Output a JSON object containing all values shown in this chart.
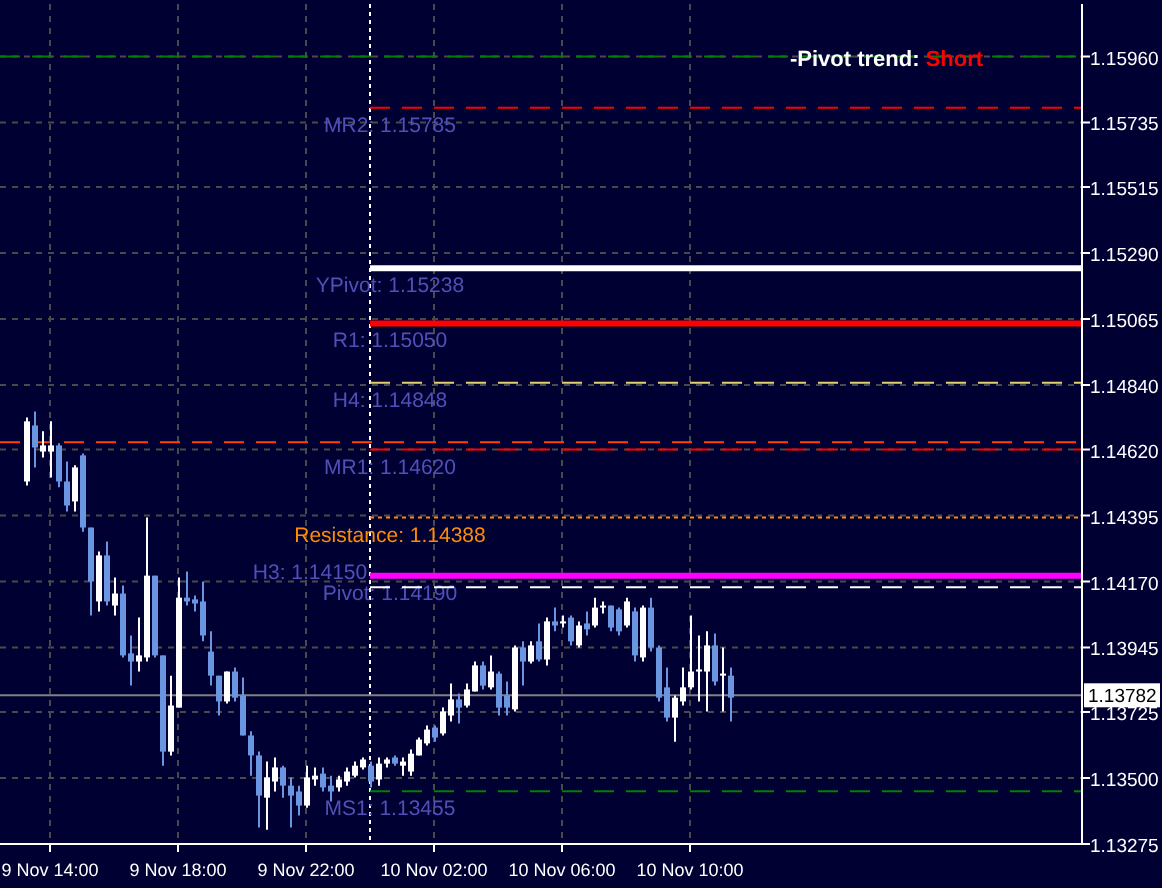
{
  "chart_data": {
    "type": "candlestick",
    "x": [
      "--11-09T13:15",
      "--11-09T13:30",
      "--11-09T13:45",
      "--11-09T14:00",
      "--11-09T14:15",
      "--11-09T14:30",
      "--11-09T14:45",
      "--11-09T15:00",
      "--11-09T15:15",
      "--11-09T15:30",
      "--11-09T15:45",
      "--11-09T16:00",
      "--11-09T16:15",
      "--11-09T16:30",
      "--11-09T16:45",
      "--11-09T17:00",
      "--11-09T17:15",
      "--11-09T17:30",
      "--11-09T17:45",
      "--11-09T18:00",
      "--11-09T18:15",
      "--11-09T18:30",
      "--11-09T18:45",
      "--11-09T19:00",
      "--11-09T19:15",
      "--11-09T19:30",
      "--11-09T19:45",
      "--11-09T20:00",
      "--11-09T20:15",
      "--11-09T20:30",
      "--11-09T20:45",
      "--11-09T21:00",
      "--11-09T21:15",
      "--11-09T21:30",
      "--11-09T21:45",
      "--11-09T22:00",
      "--11-09T22:15",
      "--11-09T22:30",
      "--11-09T22:45",
      "--11-09T23:00",
      "--11-09T23:15",
      "--11-09T23:30",
      "--11-09T23:45",
      "--11-10T00:00",
      "--11-10T00:15",
      "--11-10T00:30",
      "--11-10T00:45",
      "--11-10T01:00",
      "--11-10T01:15",
      "--11-10T01:30",
      "--11-10T01:45",
      "--11-10T02:00",
      "--11-10T02:15",
      "--11-10T02:30",
      "--11-10T02:45",
      "--11-10T03:00",
      "--11-10T03:15",
      "--11-10T03:30",
      "--11-10T03:45",
      "--11-10T04:00",
      "--11-10T04:15",
      "--11-10T04:30",
      "--11-10T04:45",
      "--11-10T05:00",
      "--11-10T05:15",
      "--11-10T05:30",
      "--11-10T05:45",
      "--11-10T06:00",
      "--11-10T06:15",
      "--11-10T06:30",
      "--11-10T06:45",
      "--11-10T07:00",
      "--11-10T07:15",
      "--11-10T07:30",
      "--11-10T07:45",
      "--11-10T08:00",
      "--11-10T08:15",
      "--11-10T08:30",
      "--11-10T08:45",
      "--11-10T09:00",
      "--11-10T09:15",
      "--11-10T09:30",
      "--11-10T09:45",
      "--11-10T10:00",
      "--11-10T10:15",
      "--11-10T10:30",
      "--11-10T10:45",
      "--11-10T11:00",
      "--11-10T11:15"
    ],
    "ohlc": [
      [
        1.14511,
        1.14729,
        1.14497,
        1.14716
      ],
      [
        1.14702,
        1.1475,
        1.14559,
        1.14627
      ],
      [
        1.14613,
        1.14682,
        1.14593,
        1.14634
      ],
      [
        1.14613,
        1.14716,
        1.14525,
        1.14634
      ],
      [
        1.14634,
        1.14641,
        1.14491,
        1.14511
      ],
      [
        1.14511,
        1.14579,
        1.14409,
        1.14429
      ],
      [
        1.14443,
        1.14566,
        1.14409,
        1.14559
      ],
      [
        1.146,
        1.14606,
        1.1434,
        1.14354
      ],
      [
        1.14354,
        1.14354,
        1.14054,
        1.1417
      ],
      [
        1.14102,
        1.14272,
        1.14068,
        1.14259
      ],
      [
        1.14259,
        1.14306,
        1.14088,
        1.14102
      ],
      [
        1.14088,
        1.14184,
        1.14054,
        1.14129
      ],
      [
        1.14129,
        1.14156,
        1.13911,
        1.13918
      ],
      [
        1.13925,
        1.13986,
        1.13815,
        1.13897
      ],
      [
        1.13897,
        1.14047,
        1.13863,
        1.13918
      ],
      [
        1.13911,
        1.14388,
        1.13897,
        1.1419
      ],
      [
        1.1419,
        1.1419,
        1.13911,
        1.13918
      ],
      [
        1.13918,
        1.13918,
        1.13542,
        1.1359
      ],
      [
        1.1359,
        1.13849,
        1.13577,
        1.13747
      ],
      [
        1.1374,
        1.14184,
        1.1374,
        1.14115
      ],
      [
        1.14115,
        1.14204,
        1.14088,
        1.14102
      ],
      [
        1.14109,
        1.14122,
        1.14068,
        1.14095
      ],
      [
        1.14102,
        1.1417,
        1.13966,
        1.13986
      ],
      [
        1.13931,
        1.14,
        1.13815,
        1.13849
      ],
      [
        1.13849,
        1.13849,
        1.13713,
        1.13761
      ],
      [
        1.13761,
        1.13863,
        1.13754,
        1.13863
      ],
      [
        1.13863,
        1.13877,
        1.13761,
        1.13774
      ],
      [
        1.13781,
        1.13843,
        1.13645,
        1.13645
      ],
      [
        1.13645,
        1.13659,
        1.13508,
        1.13577
      ],
      [
        1.13577,
        1.1359,
        1.13331,
        1.1344
      ],
      [
        1.13433,
        1.13556,
        1.13324,
        1.13502
      ],
      [
        1.13488,
        1.1357,
        1.13454,
        1.13536
      ],
      [
        1.13536,
        1.13542,
        1.13433,
        1.13474
      ],
      [
        1.13474,
        1.13502,
        1.13331,
        1.1344
      ],
      [
        1.13454,
        1.13474,
        1.13372,
        1.13406
      ],
      [
        1.13406,
        1.13542,
        1.13399,
        1.13502
      ],
      [
        1.13495,
        1.13536,
        1.13474,
        1.13508
      ],
      [
        1.13515,
        1.13536,
        1.13454,
        1.13468
      ],
      [
        1.13474,
        1.13508,
        1.1342,
        1.13454
      ],
      [
        1.13468,
        1.13508,
        1.13454,
        1.13495
      ],
      [
        1.13488,
        1.13536,
        1.13474,
        1.13522
      ],
      [
        1.13508,
        1.13556,
        1.13502,
        1.13542
      ],
      [
        1.13536,
        1.1357,
        1.13529,
        1.13563
      ],
      [
        1.13542,
        1.13556,
        1.13468,
        1.13488
      ],
      [
        1.13495,
        1.1357,
        1.13474,
        1.13549
      ],
      [
        1.13549,
        1.1357,
        1.13536,
        1.13563
      ],
      [
        1.1357,
        1.13577,
        1.13542,
        1.13549
      ],
      [
        1.13542,
        1.1357,
        1.13508,
        1.13556
      ],
      [
        1.13522,
        1.13597,
        1.13508,
        1.13583
      ],
      [
        1.13577,
        1.13638,
        1.13577,
        1.13631
      ],
      [
        1.13618,
        1.13679,
        1.13611,
        1.13665
      ],
      [
        1.13672,
        1.13679,
        1.13624,
        1.13638
      ],
      [
        1.13652,
        1.1374,
        1.13645,
        1.13727
      ],
      [
        1.13713,
        1.13822,
        1.13693,
        1.13768
      ],
      [
        1.13768,
        1.13788,
        1.13686,
        1.1374
      ],
      [
        1.13747,
        1.13822,
        1.1374,
        1.13802
      ],
      [
        1.13795,
        1.13897,
        1.13795,
        1.13884
      ],
      [
        1.13884,
        1.13897,
        1.13802,
        1.13815
      ],
      [
        1.13809,
        1.13918,
        1.13802,
        1.13863
      ],
      [
        1.13856,
        1.13863,
        1.13713,
        1.1374
      ],
      [
        1.13781,
        1.13829,
        1.13713,
        1.1374
      ],
      [
        1.13734,
        1.13952,
        1.13727,
        1.13945
      ],
      [
        1.13945,
        1.13966,
        1.13815,
        1.13897
      ],
      [
        1.13897,
        1.13966,
        1.1389,
        1.13952
      ],
      [
        1.13966,
        1.14027,
        1.13897,
        1.13904
      ],
      [
        1.13904,
        1.14047,
        1.13884,
        1.14034
      ],
      [
        1.14034,
        1.14081,
        1.14,
        1.1402
      ],
      [
        1.14027,
        1.14054,
        1.14013,
        1.14034
      ],
      [
        1.14047,
        1.14054,
        1.13952,
        1.13966
      ],
      [
        1.13952,
        1.14034,
        1.13945,
        1.1402
      ],
      [
        1.14027,
        1.14068,
        1.13986,
        1.14007
      ],
      [
        1.1402,
        1.14115,
        1.14013,
        1.14081
      ],
      [
        1.14081,
        1.14102,
        1.14061,
        1.14088
      ],
      [
        1.14088,
        1.14088,
        1.14,
        1.14013
      ],
      [
        1.14075,
        1.14081,
        1.13986,
        1.14
      ],
      [
        1.1402,
        1.14115,
        1.14013,
        1.14102
      ],
      [
        1.14068,
        1.14081,
        1.13897,
        1.13918
      ],
      [
        1.13911,
        1.14088,
        1.13897,
        1.14081
      ],
      [
        1.14081,
        1.14115,
        1.13931,
        1.13945
      ],
      [
        1.13945,
        1.13952,
        1.13761,
        1.13774
      ],
      [
        1.13809,
        1.13877,
        1.13693,
        1.13706
      ],
      [
        1.13706,
        1.13781,
        1.13624,
        1.13774
      ],
      [
        1.13761,
        1.13877,
        1.13747,
        1.13809
      ],
      [
        1.13809,
        1.14054,
        1.13802,
        1.13863
      ],
      [
        1.13863,
        1.13986,
        1.13761,
        1.1387
      ],
      [
        1.13863,
        1.14,
        1.13727,
        1.13952
      ],
      [
        1.13952,
        1.13993,
        1.13815,
        1.13829
      ],
      [
        1.13849,
        1.13945,
        1.13727,
        1.13856
      ],
      [
        1.13849,
        1.13877,
        1.13693,
        1.13774
      ]
    ],
    "colors": [
      "#ffffff",
      "#6a95e0",
      "#ffffff",
      "#ffffff",
      "#6a95e0",
      "#6a95e0",
      "#ffffff",
      "#6a95e0",
      "#6a95e0",
      "#ffffff",
      "#6a95e0",
      "#ffffff",
      "#6a95e0",
      "#6a95e0",
      "#ffffff",
      "#ffffff",
      "#6a95e0",
      "#6a95e0",
      "#ffffff",
      "#ffffff",
      "#6a95e0",
      "#6a95e0",
      "#6a95e0",
      "#6a95e0",
      "#6a95e0",
      "#ffffff",
      "#6a95e0",
      "#6a95e0",
      "#6a95e0",
      "#6a95e0",
      "#ffffff",
      "#ffffff",
      "#6a95e0",
      "#6a95e0",
      "#6a95e0",
      "#ffffff",
      "#ffffff",
      "#6a95e0",
      "#6a95e0",
      "#ffffff",
      "#ffffff",
      "#ffffff",
      "#ffffff",
      "#6a95e0",
      "#ffffff",
      "#ffffff",
      "#6a95e0",
      "#ffffff",
      "#ffffff",
      "#ffffff",
      "#ffffff",
      "#6a95e0",
      "#ffffff",
      "#ffffff",
      "#6a95e0",
      "#ffffff",
      "#ffffff",
      "#6a95e0",
      "#ffffff",
      "#6a95e0",
      "#6a95e0",
      "#ffffff",
      "#6a95e0",
      "#ffffff",
      "#6a95e0",
      "#ffffff",
      "#6a95e0",
      "#ffffff",
      "#6a95e0",
      "#ffffff",
      "#6a95e0",
      "#ffffff",
      "#ffffff",
      "#6a95e0",
      "#6a95e0",
      "#ffffff",
      "#6a95e0",
      "#ffffff",
      "#6a95e0",
      "#6a95e0",
      "#6a95e0",
      "#ffffff",
      "#ffffff",
      "#ffffff",
      "#ffffff",
      "#ffffff",
      "#6a95e0",
      "#ffffff",
      "#6a95e0"
    ],
    "xlim": [
      "--11-09T12:30",
      "--11-10T22:15"
    ],
    "xticks": [
      {
        "value": "--11-09T14:00",
        "label": "9 Nov 14:00"
      },
      {
        "value": "--11-09T18:00",
        "label": "9 Nov 18:00"
      },
      {
        "value": "--11-09T22:00",
        "label": "9 Nov 22:00"
      },
      {
        "value": "--11-10T02:00",
        "label": "10 Nov 02:00"
      },
      {
        "value": "--11-10T06:00",
        "label": "10 Nov 06:00"
      },
      {
        "value": "--11-10T10:00",
        "label": "10 Nov 10:00"
      }
    ],
    "ylim": [
      1.13275,
      1.16139
    ],
    "yticks": [
      {
        "value": 1.13275,
        "label": "1.13275"
      },
      {
        "value": 1.135,
        "label": "1.13500"
      },
      {
        "value": 1.13725,
        "label": "1.13725"
      },
      {
        "value": 1.13945,
        "label": "1.13945"
      },
      {
        "value": 1.1417,
        "label": "1.14170"
      },
      {
        "value": 1.14395,
        "label": "1.14395"
      },
      {
        "value": 1.1462,
        "label": "1.14620"
      },
      {
        "value": 1.1484,
        "label": "1.14840"
      },
      {
        "value": 1.15065,
        "label": "1.15065"
      },
      {
        "value": 1.1529,
        "label": "1.15290"
      },
      {
        "value": 1.15515,
        "label": "1.15515"
      },
      {
        "value": 1.15735,
        "label": "1.15735"
      },
      {
        "value": 1.1596,
        "label": "1.15960"
      }
    ],
    "grid": true,
    "ref_lines": [
      {
        "axis": "x",
        "value": "--11-10T00:00",
        "color": "#ffffff",
        "line_style": "dotted"
      },
      {
        "axis": "y",
        "value": 1.1596,
        "color": "#008000",
        "line_style": "dashed"
      },
      {
        "axis": "y",
        "value": 1.14645,
        "color": "#ff4500",
        "line_style": "dashed"
      },
      {
        "axis": "y",
        "value": 1.13782,
        "label": "1.13782",
        "color": "#808080",
        "line_style": "solid"
      },
      {
        "axis": "y",
        "value": 1.15785,
        "label": "MR2: 1.15785",
        "color": "#ff0000",
        "line_style": "dashed"
      },
      {
        "axis": "y",
        "value": 1.15238,
        "label": "YPivot: 1.15238",
        "color": "#ffffff",
        "line_style": "solid"
      },
      {
        "axis": "y",
        "value": 1.1505,
        "label": "R1: 1.15050",
        "color": "#ff0000",
        "line_style": "solid"
      },
      {
        "axis": "y",
        "value": 1.14848,
        "label": "H4: 1.14848",
        "color": "#e6d070",
        "line_style": "dashed"
      },
      {
        "axis": "y",
        "value": 1.1462,
        "label": "MR1: 1.14620",
        "color": "#ff0000",
        "line_style": "dashed"
      },
      {
        "axis": "y",
        "value": 1.14388,
        "label": "Resistance: 1.14388",
        "color": "#ff8c00",
        "line_style": "dotted"
      },
      {
        "axis": "y",
        "value": 1.1419,
        "label": "Pivot: 1.14190",
        "color": "#ff00ff",
        "line_style": "solid"
      },
      {
        "axis": "y",
        "value": 1.1415,
        "label": "H3: 1.14150",
        "color": "#ffffff",
        "line_style": "dashed"
      },
      {
        "axis": "y",
        "value": 1.13455,
        "label": "MS1: 1.13455",
        "color": "#008000",
        "line_style": "dashed"
      }
    ],
    "annotations": [
      "-Pivot trend: Short"
    ]
  }
}
